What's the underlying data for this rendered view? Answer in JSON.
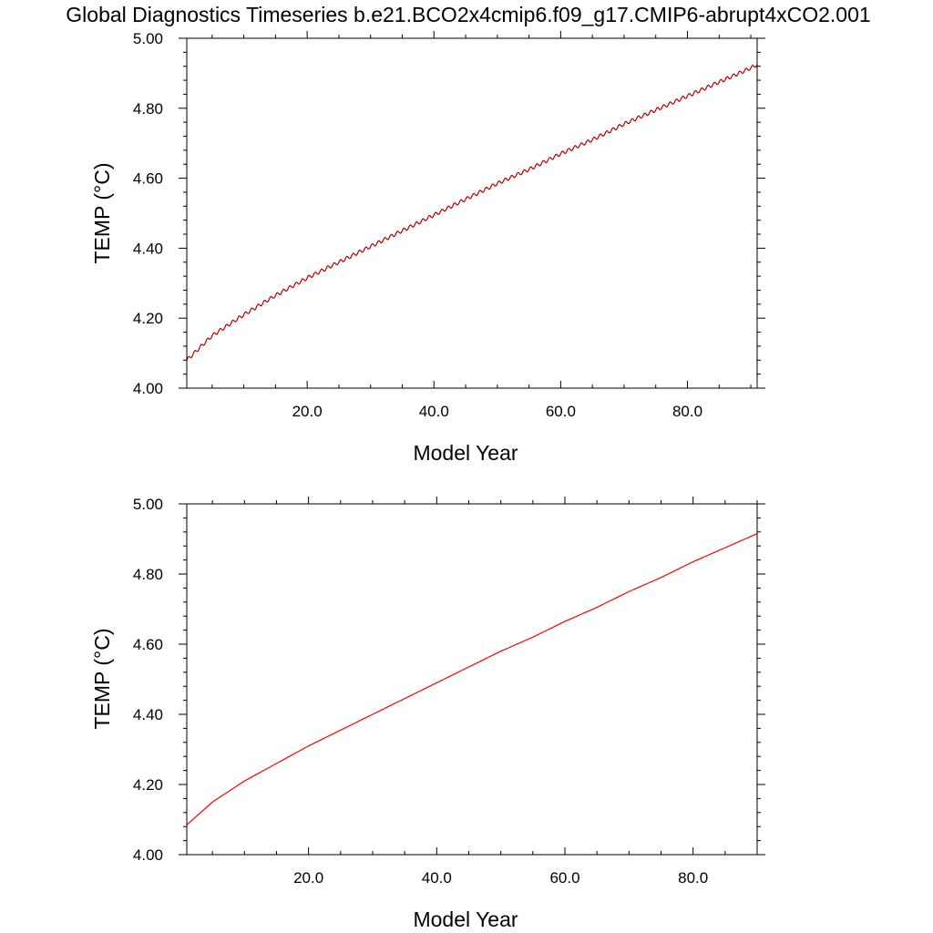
{
  "figure": {
    "title": "Global Diagnostics Timeseries b.e21.BCO2x4cmip6.f09_g17.CMIP6-abrupt4xCO2.001"
  },
  "chart_data": [
    {
      "type": "line",
      "xlabel": "Model Year",
      "ylabel": "TEMP (°C)",
      "xlim": [
        1,
        91
      ],
      "ylim": [
        4.0,
        5.0
      ],
      "xticks": [
        20.0,
        40.0,
        60.0,
        80.0
      ],
      "xtick_labels": [
        "20.0",
        "40.0",
        "60.0",
        "80.0"
      ],
      "yticks": [
        4.0,
        4.2,
        4.4,
        4.6,
        4.8,
        5.0
      ],
      "ytick_labels": [
        "4.00",
        "4.20",
        "4.40",
        "4.60",
        "4.80",
        "5.00"
      ],
      "grid": false,
      "series": [
        {
          "resolution": "monthly",
          "color": "#ff0000",
          "overlay_color": "#000000",
          "seasonal_amplitude": 0.005,
          "x": [
            1,
            5,
            10,
            15,
            20,
            25,
            30,
            35,
            40,
            45,
            50,
            55,
            60,
            65,
            70,
            75,
            80,
            85,
            90,
            91
          ],
          "y": [
            4.08,
            4.15,
            4.21,
            4.265,
            4.315,
            4.36,
            4.405,
            4.45,
            4.495,
            4.54,
            4.585,
            4.625,
            4.67,
            4.71,
            4.755,
            4.795,
            4.835,
            4.875,
            4.915,
            4.925
          ]
        }
      ]
    },
    {
      "type": "line",
      "xlabel": "Model Year",
      "ylabel": "TEMP (°C)",
      "xlim": [
        1,
        90
      ],
      "ylim": [
        4.0,
        5.0
      ],
      "xticks": [
        20.0,
        40.0,
        60.0,
        80.0
      ],
      "xtick_labels": [
        "20.0",
        "40.0",
        "60.0",
        "80.0"
      ],
      "yticks": [
        4.0,
        4.2,
        4.4,
        4.6,
        4.8,
        5.0
      ],
      "ytick_labels": [
        "4.00",
        "4.20",
        "4.40",
        "4.60",
        "4.80",
        "5.00"
      ],
      "grid": false,
      "series": [
        {
          "resolution": "annual",
          "color": "#ff0000",
          "x": [
            1,
            5,
            10,
            15,
            20,
            25,
            30,
            35,
            40,
            45,
            50,
            55,
            60,
            65,
            70,
            75,
            80,
            85,
            90
          ],
          "y": [
            4.085,
            4.15,
            4.21,
            4.26,
            4.31,
            4.355,
            4.4,
            4.445,
            4.49,
            4.535,
            4.58,
            4.62,
            4.665,
            4.705,
            4.75,
            4.79,
            4.835,
            4.875,
            4.915
          ]
        }
      ]
    }
  ]
}
